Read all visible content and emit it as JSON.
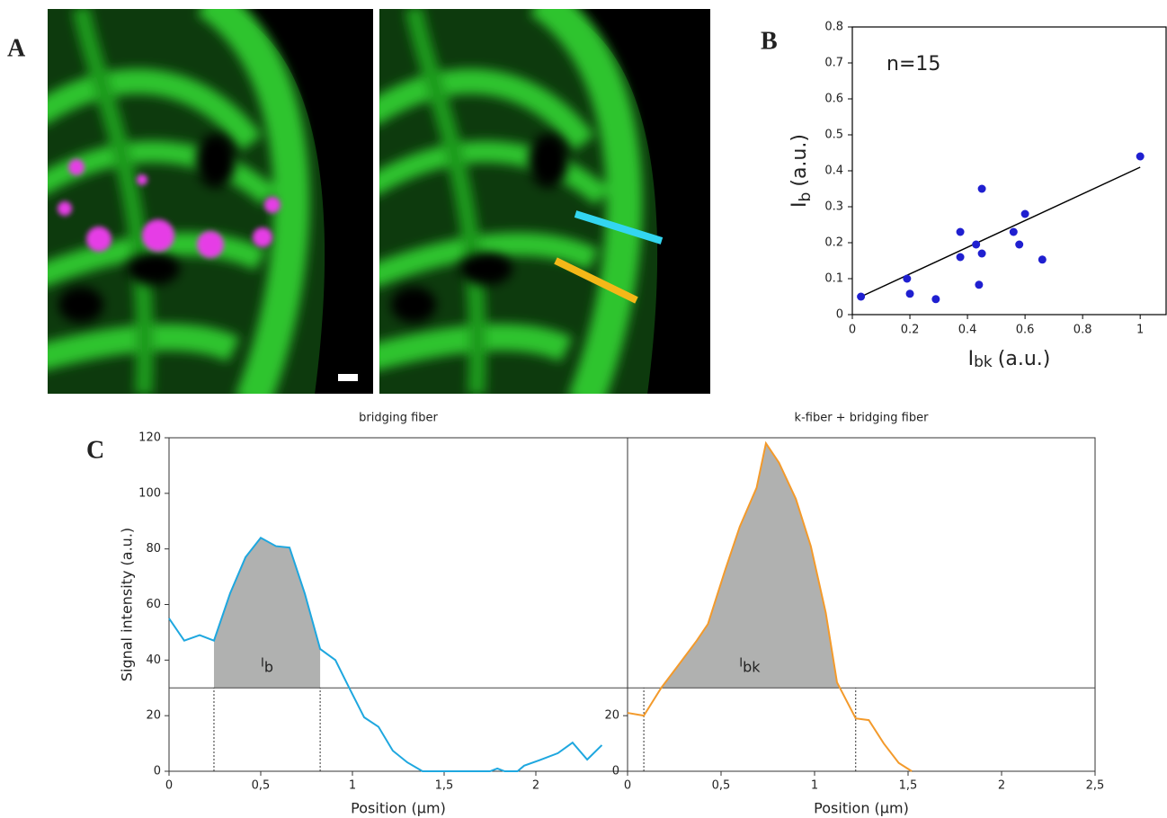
{
  "panel_labels": [
    "A",
    "B",
    "C"
  ],
  "chart_data": [
    {
      "type": "scatter",
      "annotation": "n=15",
      "x": [
        0.03,
        0.19,
        0.2,
        0.29,
        0.375,
        0.375,
        0.43,
        0.44,
        0.45,
        0.45,
        0.56,
        0.58,
        0.6,
        0.66,
        1.0
      ],
      "y": [
        0.05,
        0.1,
        0.058,
        0.043,
        0.23,
        0.16,
        0.195,
        0.083,
        0.35,
        0.17,
        0.23,
        0.195,
        0.28,
        0.153,
        0.44
      ],
      "color": "#1f1fd0",
      "fit": {
        "x": [
          0.03,
          1.0
        ],
        "y": [
          0.05,
          0.41
        ],
        "color": "#000000"
      },
      "xlim": [
        0,
        1.09
      ],
      "ylim": [
        0,
        0.8
      ],
      "xticks": [
        0,
        0.2,
        0.4,
        0.6,
        0.8,
        1
      ],
      "yticks": [
        0,
        0.1,
        0.2,
        0.3,
        0.4,
        0.5,
        0.6,
        0.7,
        0.8
      ],
      "xlabel": {
        "main": "I",
        "sub": "bk",
        "unit": "(a.u.)"
      },
      "ylabel": {
        "main": "I",
        "sub": "b",
        "unit": "(a.u.)"
      }
    },
    {
      "type": "line",
      "title": "bridging fiber",
      "color": "#1ea7df",
      "x": [
        0,
        0.083,
        0.167,
        0.245,
        0.333,
        0.417,
        0.5,
        0.583,
        0.657,
        0.74,
        0.824,
        0.907,
        0.99,
        1.064,
        1.142,
        1.22,
        1.299,
        1.382,
        1.75,
        1.79,
        1.83,
        1.9,
        1.936,
        2.02,
        2.12,
        2.2,
        2.28,
        2.36
      ],
      "values": [
        55,
        47,
        49,
        47,
        64,
        77,
        84,
        81,
        80.5,
        64,
        44,
        40,
        29,
        19.4,
        16,
        7.4,
        3.2,
        0,
        0,
        1,
        0,
        0,
        2,
        4,
        6.5,
        10.3,
        4.2,
        9.4
      ],
      "threshold": 30,
      "shade": [
        0.245,
        0.824
      ],
      "area_label": {
        "main": "I",
        "sub": "b"
      },
      "xlim": [
        0,
        2.5
      ],
      "ylim": [
        0,
        120
      ],
      "xticks": [
        0,
        {
          "value": 0.5,
          "label": "0,5"
        },
        1,
        {
          "value": 1.5,
          "label": "1,5"
        },
        2
      ],
      "yticks": [
        0,
        20,
        40,
        60,
        80,
        100,
        120
      ],
      "xlabel": "Position (µm)",
      "ylabel": "Signal intensity (a.u.)"
    },
    {
      "type": "line",
      "title": "k-fiber + bridging fiber",
      "color": "#f39a2b",
      "x": [
        0,
        0.087,
        0.18,
        0.27,
        0.37,
        0.43,
        0.52,
        0.6,
        0.69,
        0.74,
        0.81,
        0.9,
        0.98,
        1.06,
        1.12,
        1.22,
        1.29,
        1.37,
        1.45,
        1.52
      ],
      "values": [
        21,
        20,
        30,
        38,
        47,
        53,
        72,
        88,
        102,
        118,
        111,
        98,
        81,
        57,
        32,
        19,
        18.4,
        10,
        3,
        0
      ],
      "threshold": 30,
      "shade": [
        0.087,
        1.22
      ],
      "area_label": {
        "main": "I",
        "sub": "bk"
      },
      "xlim": [
        0,
        2.5
      ],
      "ylim": [
        0,
        120
      ],
      "xticks": [
        0,
        {
          "value": 0.5,
          "label": "0,5"
        },
        1,
        {
          "value": 1.5,
          "label": "1,5"
        },
        2,
        {
          "value": 2.5,
          "label": "2,5"
        }
      ],
      "yticks": [
        0,
        20
      ],
      "xlabel": "Position (µm)"
    }
  ]
}
